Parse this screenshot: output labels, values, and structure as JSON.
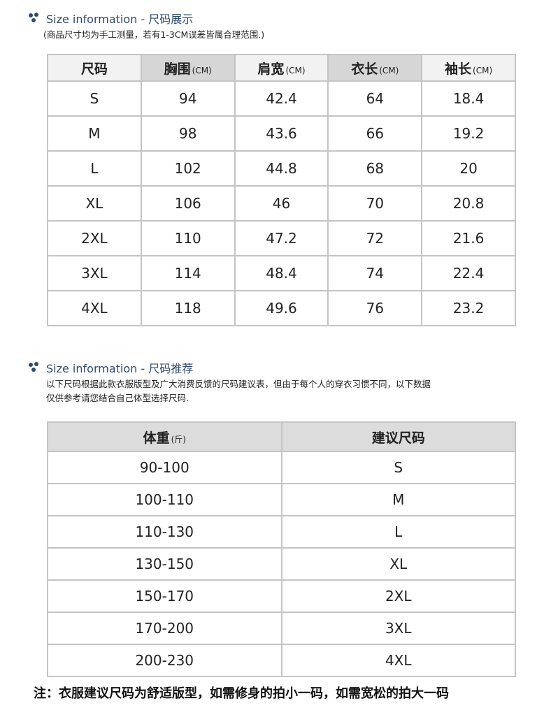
{
  "section1": {
    "title": "Size information - 尺码展示",
    "note": "(商品尺寸均为手工测量，若有1-3CM误差皆属合理范围.)",
    "table": {
      "header": [
        {
          "label": "尺码"
        },
        {
          "label": "胸围",
          "unit": "(CM)"
        },
        {
          "label": "肩宽",
          "unit": "(CM)"
        },
        {
          "label": "衣长",
          "unit": "(CM)"
        },
        {
          "label": "袖长",
          "unit": "(CM)"
        }
      ],
      "rows": [
        [
          "S",
          "94",
          "42.4",
          "64",
          "18.4"
        ],
        [
          "M",
          "98",
          "43.6",
          "66",
          "19.2"
        ],
        [
          "L",
          "102",
          "44.8",
          "68",
          "20"
        ],
        [
          "XL",
          "106",
          "46",
          "70",
          "20.8"
        ],
        [
          "2XL",
          "110",
          "47.2",
          "72",
          "21.6"
        ],
        [
          "3XL",
          "114",
          "48.4",
          "74",
          "22.4"
        ],
        [
          "4XL",
          "118",
          "49.6",
          "76",
          "23.2"
        ]
      ]
    }
  },
  "section2": {
    "title": "Size information - 尺码推荐",
    "note": [
      "以下尺码根据此款衣服版型及广大消费反馈的尺码建议表，但由于每个人的穿衣习惯不同，以下数据",
      "仅供参考请您结合自己体型选择尺码."
    ],
    "table": {
      "header": [
        {
          "label": "体重",
          "unit": "(斤)"
        },
        {
          "label": "建议尺码"
        }
      ],
      "rows": [
        [
          "90-100",
          "S"
        ],
        [
          "100-110",
          "M"
        ],
        [
          "110-130",
          "L"
        ],
        [
          "130-150",
          "XL"
        ],
        [
          "150-170",
          "2XL"
        ],
        [
          "170-200",
          "3XL"
        ],
        [
          "200-230",
          "4XL"
        ]
      ]
    }
  },
  "footer": "注：衣服建议尺码为舒适版型，如需修身的拍小一码，如需宽松的拍大一码"
}
